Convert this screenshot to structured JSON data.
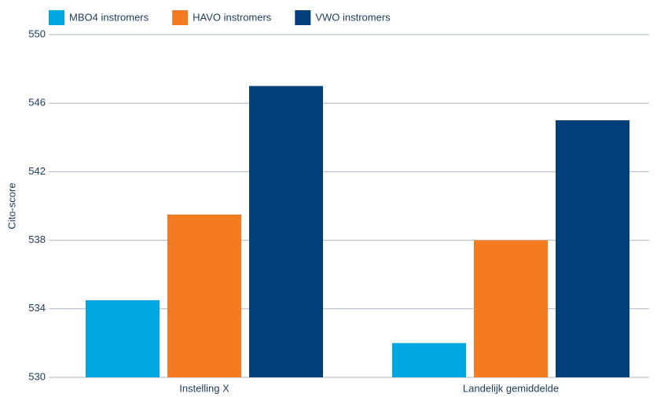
{
  "chart_data": {
    "type": "bar",
    "y_label": "Cito-score",
    "categories": [
      "Instelling X",
      "Landelijk gemiddelde"
    ],
    "series": [
      {
        "name": "MBO4 instromers",
        "color": "#00a6e0",
        "values": [
          534.5,
          532
        ]
      },
      {
        "name": "HAVO instromers",
        "color": "#f47b20",
        "values": [
          539.5,
          538
        ]
      },
      {
        "name": "VWO instromers",
        "color": "#003f7a",
        "values": [
          547,
          545
        ]
      }
    ],
    "ylim": [
      530,
      550
    ],
    "yticks": [
      530,
      534,
      538,
      542,
      546,
      550
    ],
    "grid": true,
    "legend": "top"
  }
}
